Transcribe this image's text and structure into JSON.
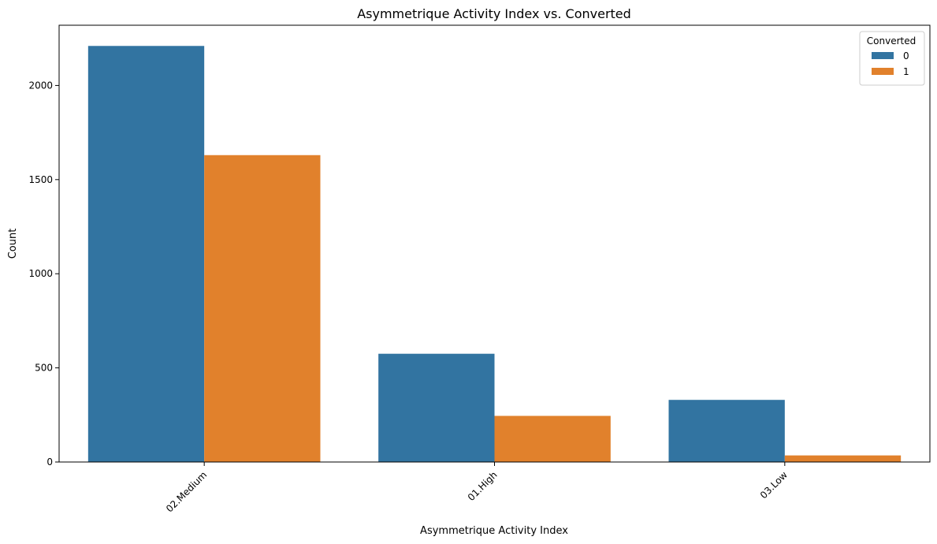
{
  "chart_data": {
    "type": "bar",
    "title": "Asymmetrique Activity Index vs. Converted",
    "xlabel": "Asymmetrique Activity Index",
    "ylabel": "Count",
    "categories": [
      "02.Medium",
      "01.High",
      "03.Low"
    ],
    "series": [
      {
        "name": "0",
        "values": [
          2210,
          575,
          330
        ],
        "color": "#3274a1"
      },
      {
        "name": "1",
        "values": [
          1630,
          245,
          35
        ],
        "color": "#e1812c"
      }
    ],
    "ylim": [
      0,
      2320
    ],
    "yticks": [
      0,
      500,
      1000,
      1500,
      2000
    ],
    "grid": false,
    "legend": {
      "title": "Converted",
      "placement": "top-right"
    }
  }
}
